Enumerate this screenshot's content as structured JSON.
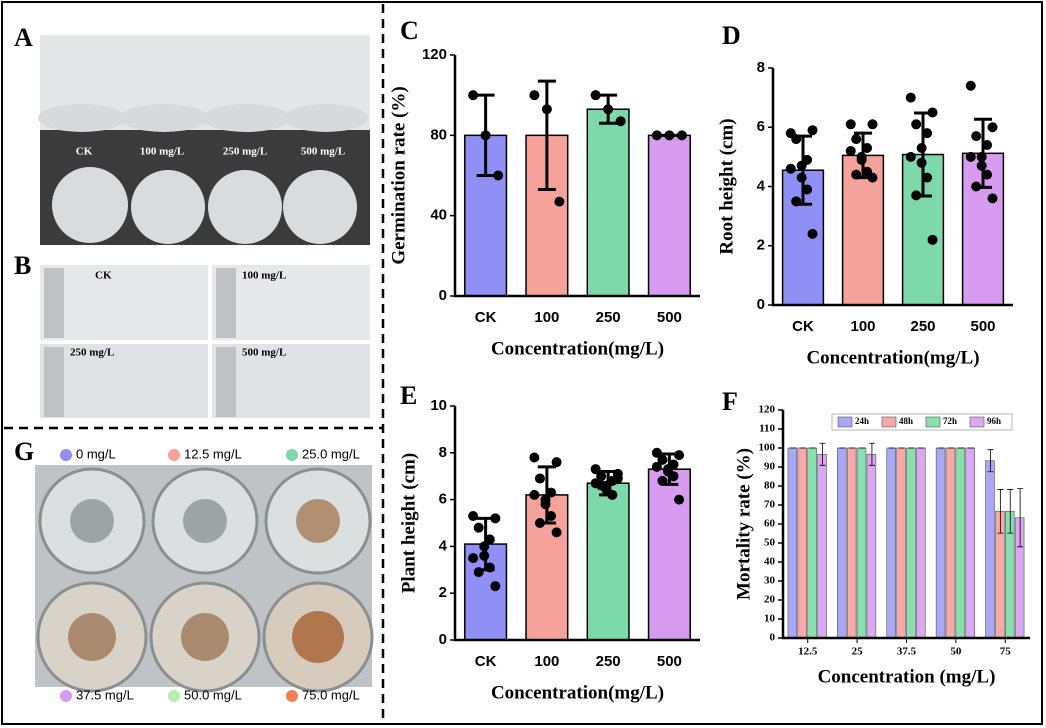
{
  "panel_labels": [
    "A",
    "B",
    "C",
    "D",
    "E",
    "F",
    "G"
  ],
  "photos": {
    "A": {
      "labels": [
        "CK",
        "100 mg/L",
        "250 mg/L",
        "500 mg/L"
      ]
    },
    "B": {
      "labels": [
        "CK",
        "100 mg/L",
        "250 mg/L",
        "500 mg/L"
      ]
    },
    "G": {
      "labels": [
        "0 mg/L",
        "12.5 mg/L",
        "25.0 mg/L",
        "37.5 mg/L",
        "50.0 mg/L",
        "75.0 mg/L"
      ]
    }
  },
  "chart_data": [
    {
      "type": "bar",
      "xlabel": "Concentration(mg/L)",
      "ylabel": "Germination rate (%)",
      "categories": [
        "CK",
        "100",
        "250",
        "500"
      ],
      "values": [
        80,
        80,
        93,
        80
      ],
      "errors": [
        20,
        27,
        7,
        0
      ],
      "points": [
        [
          100,
          80,
          60
        ],
        [
          100,
          93,
          47
        ],
        [
          100,
          93,
          87
        ],
        [
          80,
          80,
          80
        ]
      ],
      "colors": [
        "#8f8ff5",
        "#f4a29a",
        "#7dd8aa",
        "#d79cf0"
      ],
      "ylim": [
        0,
        120
      ],
      "yticks": [
        0,
        40,
        80,
        120
      ]
    },
    {
      "type": "bar",
      "xlabel": "Concentration(mg/L)",
      "ylabel": "Root height (cm)",
      "categories": [
        "CK",
        "100",
        "250",
        "500"
      ],
      "values": [
        4.55,
        5.05,
        5.08,
        5.12
      ],
      "errors": [
        1.15,
        0.75,
        1.4,
        1.15
      ],
      "points": [
        [
          5.8,
          5.9,
          5.6,
          4.9,
          4.7,
          4.3,
          3.9,
          3.5,
          2.4,
          4.6
        ],
        [
          6.1,
          6.1,
          5.6,
          5.3,
          5.0,
          4.9,
          4.5,
          4.4,
          4.3,
          5.2
        ],
        [
          7.0,
          6.5,
          6.1,
          5.8,
          5.3,
          4.8,
          4.3,
          3.7,
          2.2,
          5.0
        ],
        [
          7.4,
          6.0,
          5.7,
          5.4,
          5.0,
          4.7,
          4.4,
          4.0,
          3.6,
          5.0
        ]
      ],
      "colors": [
        "#8f8ff5",
        "#f4a29a",
        "#7dd8aa",
        "#d79cf0"
      ],
      "ylim": [
        0,
        8
      ],
      "yticks": [
        0,
        2,
        4,
        6,
        8
      ]
    },
    {
      "type": "bar",
      "xlabel": "Concentration(mg/L)",
      "ylabel": "Plant height (cm)",
      "categories": [
        "CK",
        "100",
        "250",
        "500"
      ],
      "values": [
        4.1,
        6.2,
        6.7,
        7.3
      ],
      "errors": [
        1.1,
        1.2,
        0.5,
        0.65
      ],
      "points": [
        [
          5.3,
          5.2,
          4.8,
          4.3,
          4.0,
          3.6,
          3.1,
          2.9,
          2.3,
          3.5
        ],
        [
          7.8,
          7.6,
          6.9,
          6.3,
          6.0,
          5.8,
          5.3,
          5.0,
          4.6,
          6.2
        ],
        [
          7.3,
          7.1,
          7.0,
          6.8,
          6.6,
          6.4,
          6.2,
          6.6,
          6.9,
          6.7
        ],
        [
          8.0,
          7.9,
          7.7,
          7.5,
          7.3,
          7.2,
          7.0,
          6.8,
          6.0,
          7.4
        ]
      ],
      "colors": [
        "#8f8ff5",
        "#f4a29a",
        "#7dd8aa",
        "#d79cf0"
      ],
      "ylim": [
        0,
        10
      ],
      "yticks": [
        0,
        2,
        4,
        6,
        8,
        10
      ]
    },
    {
      "type": "bar",
      "xlabel": "Concentration (mg/L)",
      "ylabel": "Mortality rate (%)",
      "categories": [
        "12.5",
        "25",
        "37.5",
        "50",
        "75"
      ],
      "series": [
        {
          "name": "24h",
          "color": "#a8a8f5",
          "values": [
            100,
            100,
            100,
            100,
            93.3
          ],
          "errors": [
            0,
            0,
            0,
            0,
            5.8
          ]
        },
        {
          "name": "48h",
          "color": "#f5aaaa",
          "values": [
            100,
            100,
            100,
            100,
            66.7
          ],
          "errors": [
            0,
            0,
            0,
            0,
            11.5
          ]
        },
        {
          "name": "72h",
          "color": "#88e0b0",
          "values": [
            100,
            100,
            100,
            100,
            66.7
          ],
          "errors": [
            0,
            0,
            0,
            0,
            11.5
          ]
        },
        {
          "name": "96h",
          "color": "#d9a8f0",
          "values": [
            96.7,
            96.7,
            100,
            100,
            63.3
          ],
          "errors": [
            5.8,
            5.8,
            0,
            0,
            15.3
          ]
        }
      ],
      "legend": "top",
      "ylim": [
        0,
        120
      ],
      "yticks": [
        0,
        10,
        20,
        30,
        40,
        50,
        60,
        70,
        80,
        90,
        100,
        110,
        120
      ]
    }
  ]
}
